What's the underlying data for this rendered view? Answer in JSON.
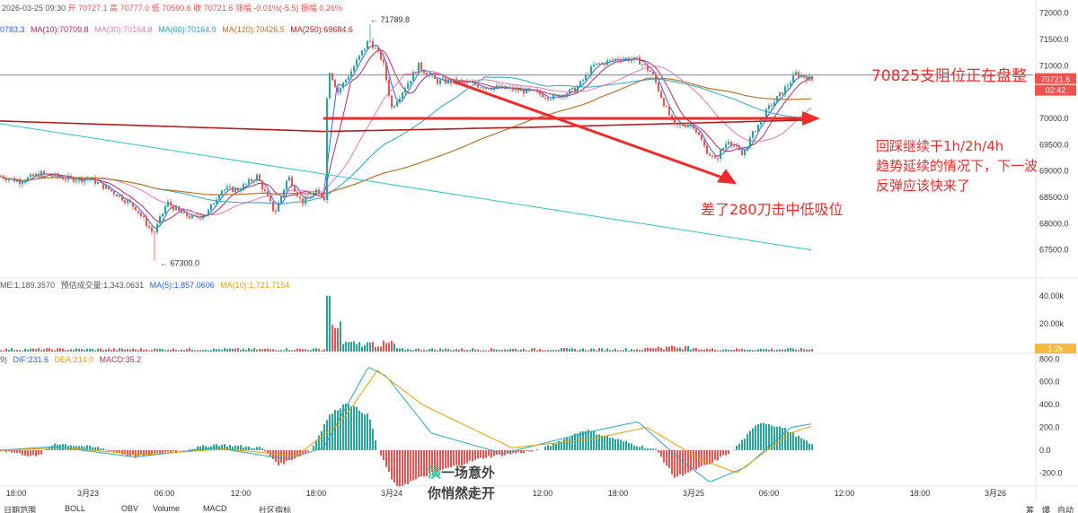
{
  "header": {
    "date": "2026-03-25 09:30",
    "open": "开 70727.1",
    "high": "高 70777.0",
    "low": "低 70590.6",
    "close": "收 70721.6",
    "change": "涨幅 -0.01%(-5.5)",
    "amplitude": "振幅 0.26%"
  },
  "ma_legend": [
    {
      "label": "0783.3",
      "color": "#2962ff"
    },
    {
      "label": "MA(10):70709.8",
      "color": "#b2286a"
    },
    {
      "label": "MA(30):70164.8",
      "color": "#e879b5"
    },
    {
      "label": "MA(60):70164.9",
      "color": "#26a6c9"
    },
    {
      "label": "MA(120):70426.5",
      "color": "#b8742a"
    },
    {
      "label": "MA(250):69684.6",
      "color": "#b71c1c"
    }
  ],
  "vol_legend": [
    {
      "label": "ME:1,189.3570",
      "color": "#555555"
    },
    {
      "label": "预估成交量:1,343.0631",
      "color": "#555555"
    },
    {
      "label": "MA(5):1,857.0606",
      "color": "#2962ff"
    },
    {
      "label": "MA(10):1,721.7154",
      "color": "#e0a100"
    }
  ],
  "macd_legend": [
    {
      "label": "9)",
      "color": "#555555"
    },
    {
      "label": "DIF:231.6",
      "color": "#2962ff"
    },
    {
      "label": "DEA:214.0",
      "color": "#e0a100"
    },
    {
      "label": "MACD:35.2",
      "color": "#b2286a"
    }
  ],
  "annotations": {
    "resistance": "70825支阻位正在盘整",
    "line1": "回踩继续干1h/2h/4h",
    "line2": "趋势延续的情况下，下一波",
    "line3": "反弹应该快来了",
    "miss": "差了280刀击中低吸位"
  },
  "watermark": {
    "g": "演",
    "rest1": "一场意外",
    "line2": "你悄然走开"
  },
  "toolbar": [
    "日期范围",
    "BOLL",
    "OBV",
    "Volume",
    "MACD",
    "社区指标",
    "筹",
    "爆",
    "自动"
  ],
  "colors": {
    "up": "#26a69a",
    "down": "#ef5350",
    "price_line": "#5b8dd6",
    "annotation": "#ef2b2b"
  },
  "chart_data": [
    {
      "type": "candlestick",
      "price_axis_ticks": [
        72000.0,
        71500.0,
        71000.0,
        70500.0,
        70000.0,
        69500.0,
        69000.0,
        68500.0,
        68000.0,
        67500.0
      ],
      "ylim": [
        67050,
        72250
      ],
      "x_tick_labels": [
        "18:00",
        "3月23",
        "06:00",
        "12:00",
        "18:00",
        "3月24",
        "06:00",
        "12:00",
        "18:00",
        "3月25",
        "06:00",
        "12:00",
        "18:00",
        "3月26"
      ],
      "high_marker": "71789.8",
      "low_marker": "67300.0",
      "last_price": "70721.6",
      "countdown": "02:42",
      "resistance_level": 70825,
      "key_closes": [
        {
          "x": 0,
          "close": 68900
        },
        {
          "x": 20,
          "close": 68800
        },
        {
          "x": 45,
          "close": 68950
        },
        {
          "x": 75,
          "close": 68850
        },
        {
          "x": 100,
          "close": 68850
        },
        {
          "x": 130,
          "close": 68550
        },
        {
          "x": 150,
          "close": 68300
        },
        {
          "x": 170,
          "close": 67800
        },
        {
          "x": 185,
          "close": 68400
        },
        {
          "x": 200,
          "close": 68200
        },
        {
          "x": 215,
          "close": 68100
        },
        {
          "x": 230,
          "close": 68200
        },
        {
          "x": 245,
          "close": 68650
        },
        {
          "x": 265,
          "close": 68650
        },
        {
          "x": 285,
          "close": 68900
        },
        {
          "x": 305,
          "close": 68200
        },
        {
          "x": 320,
          "close": 68900
        },
        {
          "x": 335,
          "close": 68400
        },
        {
          "x": 350,
          "close": 68600
        },
        {
          "x": 360,
          "close": 68500
        },
        {
          "x": 364,
          "close": 71000
        },
        {
          "x": 375,
          "close": 70500
        },
        {
          "x": 390,
          "close": 70900
        },
        {
          "x": 410,
          "close": 71500
        },
        {
          "x": 425,
          "close": 71100
        },
        {
          "x": 435,
          "close": 70200
        },
        {
          "x": 450,
          "close": 70600
        },
        {
          "x": 465,
          "close": 71000
        },
        {
          "x": 485,
          "close": 70700
        },
        {
          "x": 510,
          "close": 70700
        },
        {
          "x": 540,
          "close": 70600
        },
        {
          "x": 570,
          "close": 70550
        },
        {
          "x": 590,
          "close": 70500
        },
        {
          "x": 615,
          "close": 70400
        },
        {
          "x": 640,
          "close": 70550
        },
        {
          "x": 660,
          "close": 71000
        },
        {
          "x": 690,
          "close": 71150
        },
        {
          "x": 710,
          "close": 71100
        },
        {
          "x": 725,
          "close": 70850
        },
        {
          "x": 740,
          "close": 70200
        },
        {
          "x": 750,
          "close": 69850
        },
        {
          "x": 770,
          "close": 69900
        },
        {
          "x": 785,
          "close": 69400
        },
        {
          "x": 795,
          "close": 69200
        },
        {
          "x": 810,
          "close": 69600
        },
        {
          "x": 825,
          "close": 69300
        },
        {
          "x": 840,
          "close": 69800
        },
        {
          "x": 855,
          "close": 70200
        },
        {
          "x": 870,
          "close": 70500
        },
        {
          "x": 885,
          "close": 70850
        },
        {
          "x": 905,
          "close": 70720
        }
      ],
      "volume_axis_ticks": [
        "40.00k",
        "20.00k"
      ],
      "volume_last": "1.2k",
      "macd_axis_ticks": [
        "800.0",
        "600.0",
        "400.0",
        "200.0",
        "0.0",
        "-200.0"
      ],
      "macd_ylim": [
        -300,
        850
      ],
      "macd_hist_keypoints": [
        {
          "x": 0,
          "v": 0
        },
        {
          "x": 40,
          "v": -60
        },
        {
          "x": 60,
          "v": 60
        },
        {
          "x": 110,
          "v": 20
        },
        {
          "x": 150,
          "v": -60
        },
        {
          "x": 200,
          "v": 0
        },
        {
          "x": 240,
          "v": 50
        },
        {
          "x": 290,
          "v": 20
        },
        {
          "x": 310,
          "v": -130
        },
        {
          "x": 345,
          "v": 0
        },
        {
          "x": 365,
          "v": 300
        },
        {
          "x": 385,
          "v": 420
        },
        {
          "x": 410,
          "v": 300
        },
        {
          "x": 420,
          "v": 0
        },
        {
          "x": 440,
          "v": -330
        },
        {
          "x": 480,
          "v": -200
        },
        {
          "x": 540,
          "v": -60
        },
        {
          "x": 600,
          "v": 0
        },
        {
          "x": 650,
          "v": 180
        },
        {
          "x": 700,
          "v": 60
        },
        {
          "x": 730,
          "v": 0
        },
        {
          "x": 750,
          "v": -240
        },
        {
          "x": 790,
          "v": -120
        },
        {
          "x": 815,
          "v": 0
        },
        {
          "x": 845,
          "v": 250
        },
        {
          "x": 870,
          "v": 200
        },
        {
          "x": 905,
          "v": 35
        }
      ],
      "dif_keypoints": [
        {
          "x": 0,
          "v": 0
        },
        {
          "x": 60,
          "v": 30
        },
        {
          "x": 150,
          "v": -60
        },
        {
          "x": 240,
          "v": 20
        },
        {
          "x": 320,
          "v": -80
        },
        {
          "x": 360,
          "v": 20
        },
        {
          "x": 410,
          "v": 730
        },
        {
          "x": 430,
          "v": 650
        },
        {
          "x": 480,
          "v": 150
        },
        {
          "x": 560,
          "v": -30
        },
        {
          "x": 650,
          "v": 150
        },
        {
          "x": 710,
          "v": 250
        },
        {
          "x": 760,
          "v": -100
        },
        {
          "x": 790,
          "v": -280
        },
        {
          "x": 830,
          "v": -150
        },
        {
          "x": 880,
          "v": 200
        },
        {
          "x": 905,
          "v": 232
        }
      ],
      "dea_keypoints": [
        {
          "x": 0,
          "v": 0
        },
        {
          "x": 70,
          "v": 20
        },
        {
          "x": 160,
          "v": -40
        },
        {
          "x": 250,
          "v": 10
        },
        {
          "x": 330,
          "v": -50
        },
        {
          "x": 380,
          "v": 250
        },
        {
          "x": 420,
          "v": 700
        },
        {
          "x": 470,
          "v": 400
        },
        {
          "x": 570,
          "v": 20
        },
        {
          "x": 660,
          "v": 100
        },
        {
          "x": 720,
          "v": 200
        },
        {
          "x": 780,
          "v": -80
        },
        {
          "x": 820,
          "v": -200
        },
        {
          "x": 880,
          "v": 150
        },
        {
          "x": 905,
          "v": 214
        }
      ]
    }
  ]
}
